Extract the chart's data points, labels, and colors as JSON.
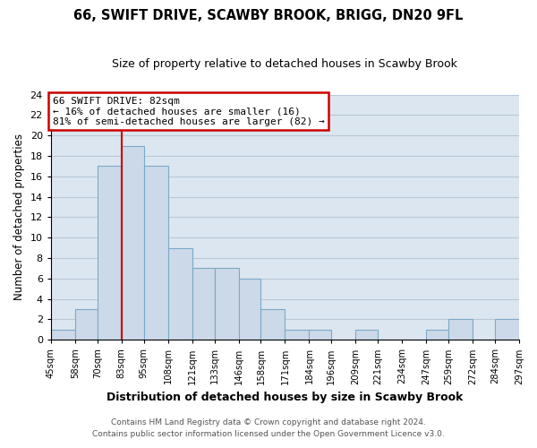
{
  "title": "66, SWIFT DRIVE, SCAWBY BROOK, BRIGG, DN20 9FL",
  "subtitle": "Size of property relative to detached houses in Scawby Brook",
  "xlabel": "Distribution of detached houses by size in Scawby Brook",
  "ylabel": "Number of detached properties",
  "bin_edges": [
    45,
    58,
    70,
    83,
    95,
    108,
    121,
    133,
    146,
    158,
    171,
    184,
    196,
    209,
    221,
    234,
    247,
    259,
    272,
    284,
    297
  ],
  "counts": [
    1,
    3,
    17,
    19,
    17,
    9,
    7,
    7,
    6,
    3,
    1,
    1,
    0,
    1,
    0,
    0,
    1,
    2,
    0,
    2
  ],
  "bar_color": "#ccd9e8",
  "bar_edge_color": "#7aaac8",
  "vline_x": 83,
  "vline_color": "#cc0000",
  "annotation_title": "66 SWIFT DRIVE: 82sqm",
  "annotation_line1": "← 16% of detached houses are smaller (16)",
  "annotation_line2": "81% of semi-detached houses are larger (82) →",
  "annotation_box_color": "#ffffff",
  "annotation_box_edge": "#cc0000",
  "ylim": [
    0,
    24
  ],
  "yticks": [
    0,
    2,
    4,
    6,
    8,
    10,
    12,
    14,
    16,
    18,
    20,
    22,
    24
  ],
  "tick_labels": [
    "45sqm",
    "58sqm",
    "70sqm",
    "83sqm",
    "95sqm",
    "108sqm",
    "121sqm",
    "133sqm",
    "146sqm",
    "158sqm",
    "171sqm",
    "184sqm",
    "196sqm",
    "209sqm",
    "221sqm",
    "234sqm",
    "247sqm",
    "259sqm",
    "272sqm",
    "284sqm",
    "297sqm"
  ],
  "footer1": "Contains HM Land Registry data © Crown copyright and database right 2024.",
  "footer2": "Contains public sector information licensed under the Open Government Licence v3.0.",
  "background_color": "#ffffff",
  "axes_bg_color": "#dce6f0",
  "grid_color": "#b8c8d8"
}
